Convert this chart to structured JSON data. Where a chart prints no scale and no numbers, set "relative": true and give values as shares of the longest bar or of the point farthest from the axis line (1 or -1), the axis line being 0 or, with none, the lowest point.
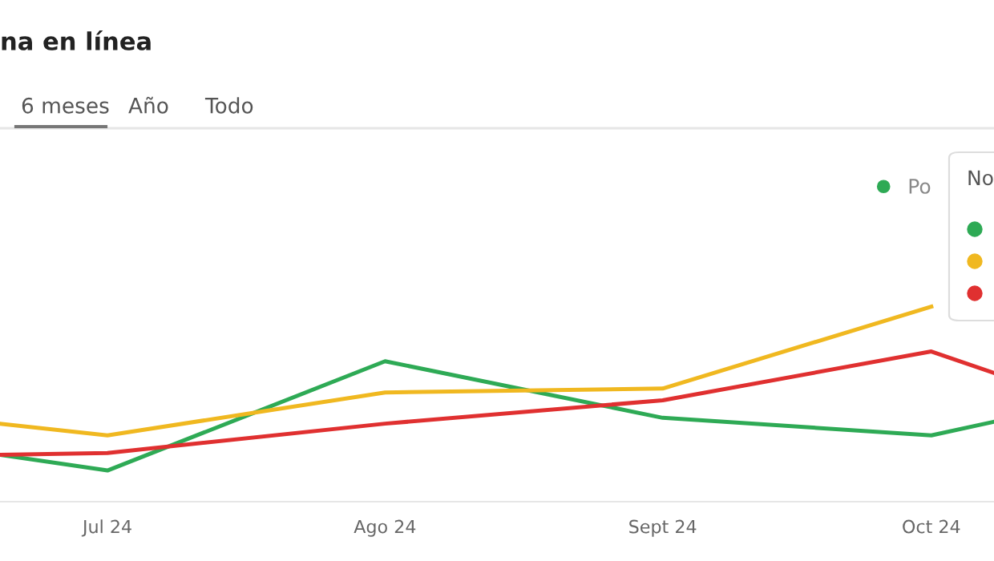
{
  "chart_data": {
    "type": "line",
    "title": "na en línea",
    "annotations": [
      "6 meses",
      "Año",
      "Todo",
      "No"
    ],
    "relative": true,
    "legend": "top right",
    "marker": "none",
    "line_style": "solid",
    "xlim": [
      "2024-06-19",
      "2024-10-08"
    ],
    "xticks": [
      {
        "value": "2024-07-01",
        "label": "Jul 24"
      },
      {
        "value": "2024-08-01",
        "label": "Ago 24"
      },
      {
        "value": "2024-09-01",
        "label": "Sept 24"
      },
      {
        "value": "2024-10-01",
        "label": "Oct 24"
      }
    ],
    "series": [
      {
        "name": "Po",
        "color": "#2eaa55",
        "x": [
          "2024-06-19",
          "2024-07-01",
          "2024-08-01",
          "2024-09-01",
          "2024-10-01",
          "2024-10-08"
        ],
        "values": [
          0.24,
          0.16,
          0.72,
          0.43,
          0.34,
          0.41
        ]
      },
      {
        "color": "#f0b820",
        "x": [
          "2024-06-19",
          "2024-07-01",
          "2024-08-01",
          "2024-09-01",
          "2024-10-01"
        ],
        "values": [
          0.4,
          0.34,
          0.56,
          0.58,
          1
        ]
      },
      {
        "color": "#e03030",
        "x": [
          "2024-06-19",
          "2024-07-01",
          "2024-08-01",
          "2024-09-01",
          "2024-10-01",
          "2024-10-08"
        ],
        "values": [
          0.24,
          0.25,
          0.4,
          0.52,
          0.77,
          0.66
        ]
      }
    ]
  }
}
